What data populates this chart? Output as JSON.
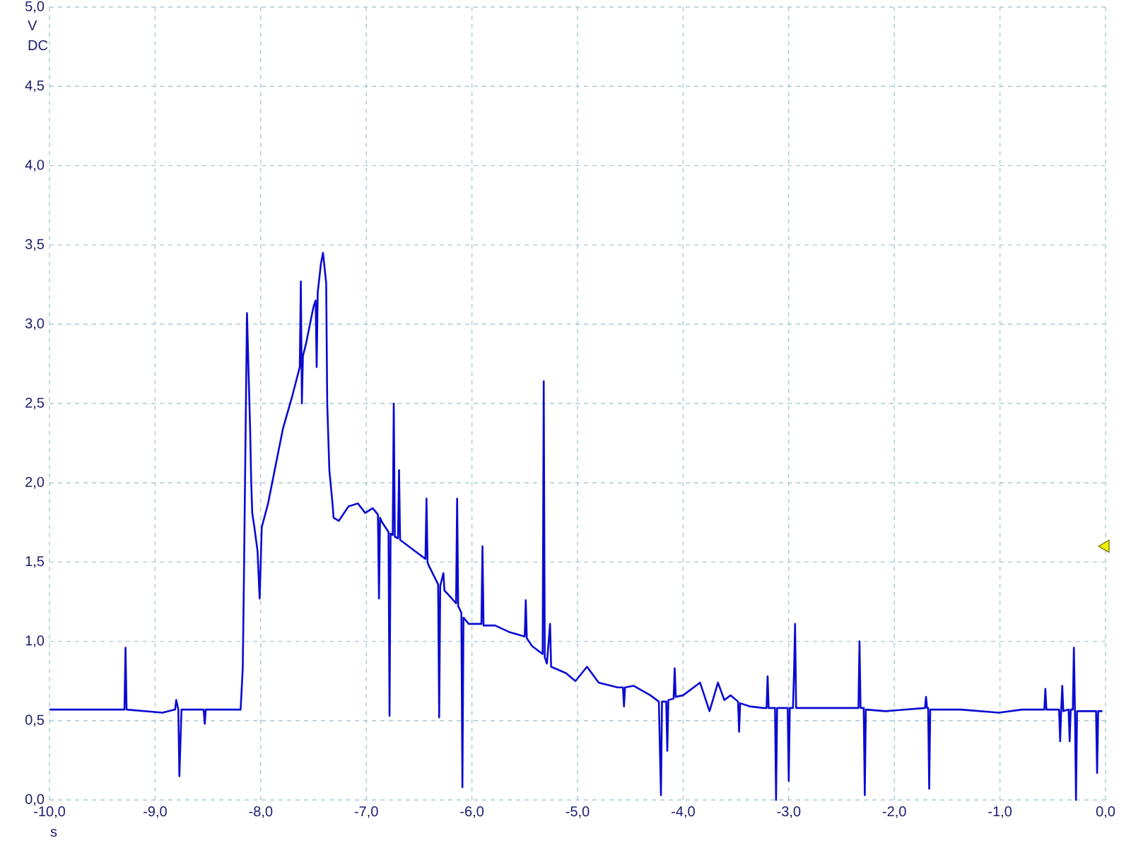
{
  "chart_data": {
    "type": "line",
    "xlabel": "s",
    "ylabel": "V",
    "annotations": [
      "DC"
    ],
    "xlim": [
      -10,
      0
    ],
    "ylim": [
      0,
      5
    ],
    "xticks": [
      {
        "value": -10,
        "label": "-10,0"
      },
      {
        "value": -9,
        "label": "-9,0"
      },
      {
        "value": -8,
        "label": "-8,0"
      },
      {
        "value": -7,
        "label": "-7,0"
      },
      {
        "value": -6,
        "label": "-6,0"
      },
      {
        "value": -5,
        "label": "-5,0"
      },
      {
        "value": -4,
        "label": "-4,0"
      },
      {
        "value": -3,
        "label": "-3,0"
      },
      {
        "value": -2,
        "label": "-2,0"
      },
      {
        "value": -1,
        "label": "-1,0"
      },
      {
        "value": 0,
        "label": "0,0"
      }
    ],
    "yticks": [
      {
        "value": 0,
        "label": "0,0"
      },
      {
        "value": 0.5,
        "label": "0,5"
      },
      {
        "value": 1,
        "label": "1,0"
      },
      {
        "value": 1.5,
        "label": "1,5"
      },
      {
        "value": 2,
        "label": "2,0"
      },
      {
        "value": 2.5,
        "label": "2,5"
      },
      {
        "value": 3,
        "label": "3,0"
      },
      {
        "value": 3.5,
        "label": "3,5"
      },
      {
        "value": 4,
        "label": "4,0"
      },
      {
        "value": 4.5,
        "label": "4,5"
      },
      {
        "value": 5,
        "label": "5,0"
      }
    ],
    "grid": true,
    "series": [
      {
        "color": "#0a0ad2",
        "x": [
          -10.0,
          -9.67,
          -9.29,
          -9.28,
          -9.27,
          -8.93,
          -8.81,
          -8.8,
          -8.78,
          -8.77,
          -8.75,
          -8.54,
          -8.53,
          -8.52,
          -8.19,
          -8.17,
          -8.16,
          -8.13,
          -8.11,
          -8.1,
          -8.09,
          -8.08,
          -8.06,
          -8.03,
          -8.01,
          -7.99,
          -7.93,
          -7.79,
          -7.7,
          -7.63,
          -7.62,
          -7.61,
          -7.6,
          -7.57,
          -7.5,
          -7.48,
          -7.47,
          -7.46,
          -7.43,
          -7.41,
          -7.38,
          -7.37,
          -7.35,
          -7.32,
          -7.31,
          -7.26,
          -7.17,
          -7.08,
          -7.01,
          -6.94,
          -6.89,
          -6.88,
          -6.87,
          -6.85,
          -6.79,
          -6.78,
          -6.77,
          -6.75,
          -6.74,
          -6.73,
          -6.7,
          -6.69,
          -6.68,
          -6.54,
          -6.44,
          -6.43,
          -6.42,
          -6.41,
          -6.32,
          -6.31,
          -6.3,
          -6.27,
          -6.26,
          -6.23,
          -6.15,
          -6.14,
          -6.13,
          -6.12,
          -6.1,
          -6.09,
          -6.08,
          -6.03,
          -5.91,
          -5.9,
          -5.89,
          -5.78,
          -5.65,
          -5.5,
          -5.49,
          -5.48,
          -5.43,
          -5.33,
          -5.32,
          -5.31,
          -5.29,
          -5.26,
          -5.25,
          -5.11,
          -5.02,
          -4.91,
          -4.8,
          -4.62,
          -4.57,
          -4.56,
          -4.55,
          -4.47,
          -4.31,
          -4.23,
          -4.21,
          -4.2,
          -4.16,
          -4.15,
          -4.14,
          -4.09,
          -4.08,
          -4.07,
          -4.0,
          -3.84,
          -3.82,
          -3.75,
          -3.67,
          -3.61,
          -3.55,
          -3.48,
          -3.47,
          -3.46,
          -3.37,
          -3.24,
          -3.21,
          -3.2,
          -3.19,
          -3.13,
          -3.12,
          -3.11,
          -3.01,
          -3.0,
          -2.99,
          -2.96,
          -2.95,
          -2.94,
          -2.93,
          -2.7,
          -2.34,
          -2.33,
          -2.32,
          -2.29,
          -2.28,
          -2.27,
          -2.08,
          -1.71,
          -1.7,
          -1.69,
          -1.68,
          -1.67,
          -1.66,
          -1.37,
          -1.01,
          -0.79,
          -0.58,
          -0.57,
          -0.56,
          -0.44,
          -0.43,
          -0.42,
          -0.41,
          -0.4,
          -0.35,
          -0.34,
          -0.33,
          -0.31,
          -0.3,
          -0.29,
          -0.28,
          -0.27,
          -0.09,
          -0.08,
          -0.07,
          -0.03
        ],
        "values": [
          0.57,
          0.57,
          0.57,
          0.96,
          0.57,
          0.55,
          0.57,
          0.63,
          0.57,
          0.15,
          0.57,
          0.57,
          0.48,
          0.57,
          0.57,
          0.83,
          1.33,
          3.07,
          2.58,
          2.34,
          2.01,
          1.81,
          1.72,
          1.57,
          1.27,
          1.72,
          1.87,
          2.34,
          2.55,
          2.73,
          3.27,
          2.5,
          2.8,
          2.88,
          3.11,
          3.15,
          2.73,
          3.2,
          3.38,
          3.45,
          3.26,
          2.5,
          2.08,
          1.87,
          1.78,
          1.76,
          1.85,
          1.87,
          1.81,
          1.84,
          1.8,
          1.27,
          1.78,
          1.75,
          1.69,
          0.53,
          1.68,
          1.67,
          2.5,
          1.66,
          1.65,
          2.08,
          1.64,
          1.57,
          1.52,
          1.9,
          1.5,
          1.48,
          1.36,
          0.52,
          1.35,
          1.43,
          1.32,
          1.3,
          1.24,
          1.9,
          1.22,
          1.21,
          1.18,
          0.08,
          1.15,
          1.11,
          1.11,
          1.6,
          1.1,
          1.1,
          1.06,
          1.03,
          1.26,
          1.02,
          0.97,
          0.92,
          2.64,
          0.9,
          0.86,
          1.11,
          0.84,
          0.8,
          0.75,
          0.84,
          0.74,
          0.71,
          0.71,
          0.59,
          0.71,
          0.72,
          0.66,
          0.62,
          0.03,
          0.62,
          0.62,
          0.31,
          0.63,
          0.64,
          0.83,
          0.65,
          0.66,
          0.74,
          0.7,
          0.56,
          0.74,
          0.63,
          0.66,
          0.62,
          0.43,
          0.61,
          0.59,
          0.58,
          0.58,
          0.78,
          0.58,
          0.58,
          0.0,
          0.58,
          0.58,
          0.12,
          0.58,
          0.58,
          0.8,
          1.11,
          0.58,
          0.58,
          0.58,
          1.0,
          0.58,
          0.58,
          0.03,
          0.57,
          0.56,
          0.58,
          0.65,
          0.58,
          0.58,
          0.07,
          0.57,
          0.57,
          0.55,
          0.57,
          0.57,
          0.7,
          0.57,
          0.57,
          0.37,
          0.57,
          0.72,
          0.56,
          0.57,
          0.37,
          0.57,
          0.57,
          0.96,
          0.57,
          0.0,
          0.56,
          0.56,
          0.17,
          0.56,
          0.56
        ]
      },
      {
        "type": "scatter",
        "color": "#f0f000",
        "marker": "triangle",
        "x": [
          0
        ],
        "values": [
          1.6
        ]
      }
    ]
  }
}
